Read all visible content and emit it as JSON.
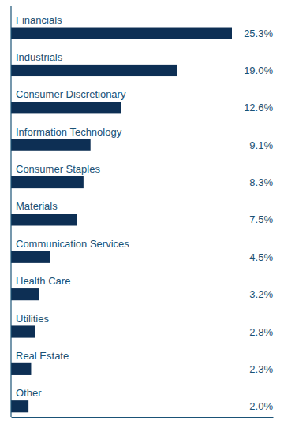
{
  "chart_data": {
    "type": "bar",
    "orientation": "horizontal",
    "categories": [
      "Financials",
      "Industrials",
      "Consumer Discretionary",
      "Information Technology",
      "Consumer Staples",
      "Materials",
      "Communication Services",
      "Health Care",
      "Utilities",
      "Real Estate",
      "Other"
    ],
    "values": [
      25.3,
      19.0,
      12.6,
      9.1,
      8.3,
      7.5,
      4.5,
      3.2,
      2.8,
      2.3,
      2.0
    ],
    "value_labels": [
      "25.3%",
      "19.0%",
      "12.6%",
      "9.1%",
      "8.3%",
      "7.5%",
      "4.5%",
      "3.2%",
      "2.8%",
      "2.3%",
      "2.0%"
    ],
    "data_labels": true,
    "color": "#0d2f54",
    "xlim": [
      0,
      30
    ],
    "tick_labels": false,
    "grid": false
  }
}
